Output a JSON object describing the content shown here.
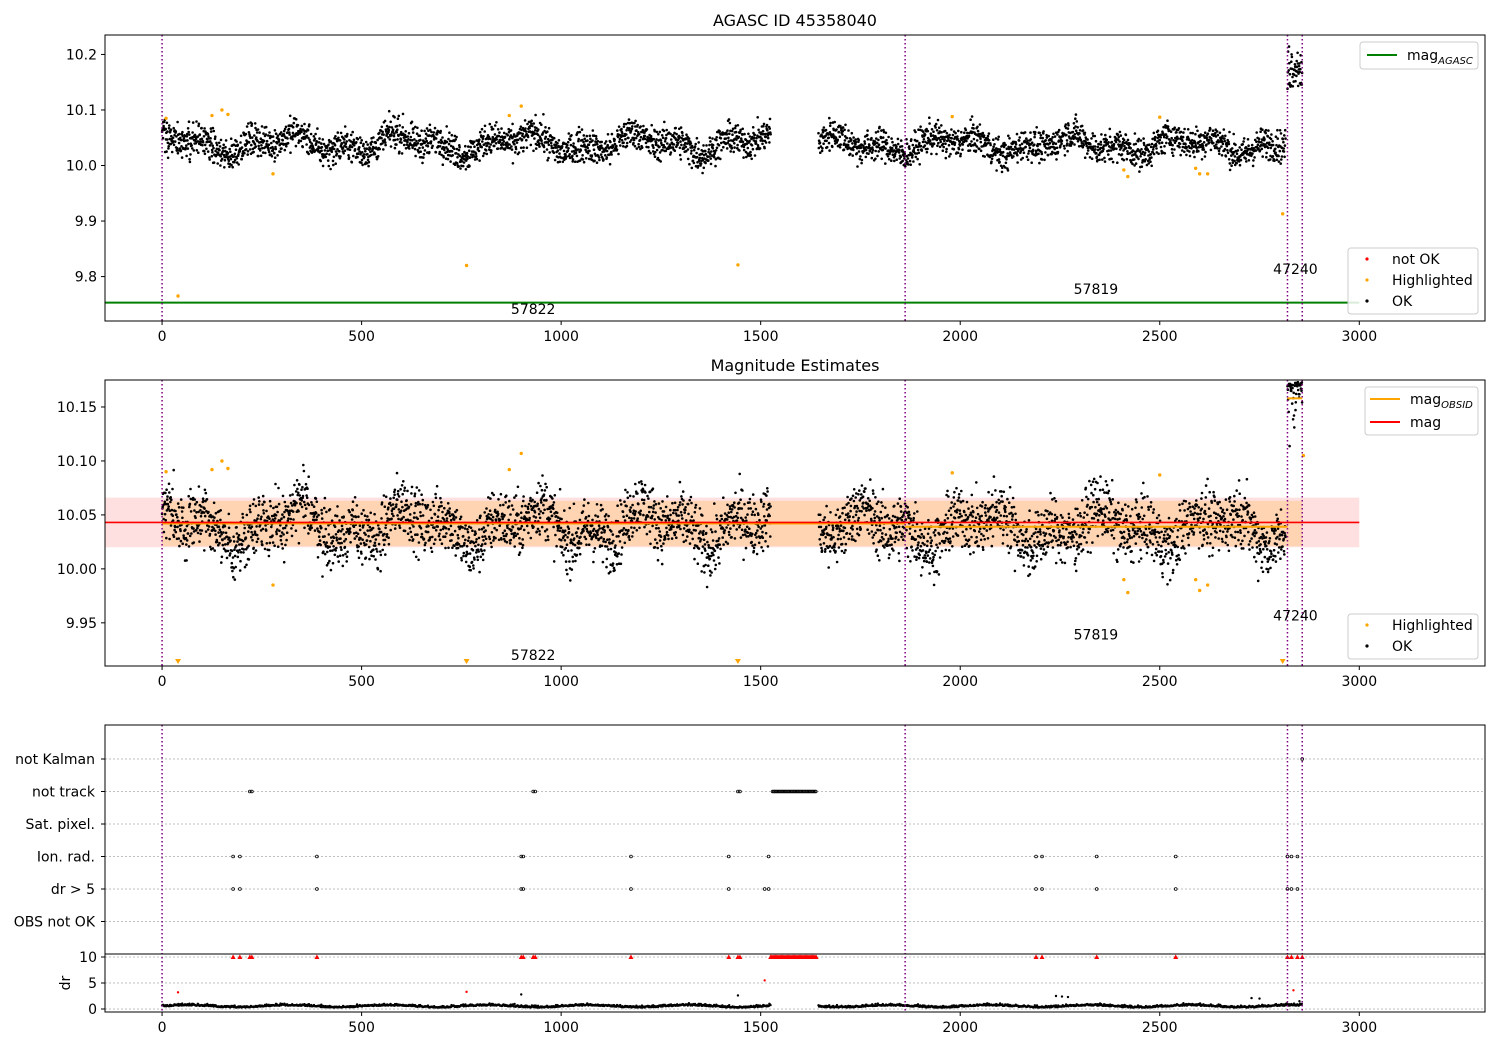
{
  "chart_data": [
    {
      "type": "scatter",
      "title": "AGASC ID 45358040",
      "xlabel": "",
      "ylabel": "",
      "xlim": [
        -143,
        3315
      ],
      "ylim": [
        9.72,
        10.235
      ],
      "x_ticks": [
        0,
        500,
        1000,
        1500,
        2000,
        2500,
        3000
      ],
      "y_ticks": [
        9.8,
        9.9,
        10.0,
        10.1,
        10.2
      ],
      "x_tick_labels": [
        "0",
        "500",
        "1000",
        "1500",
        "2000",
        "2500",
        "3000"
      ],
      "y_tick_labels": [
        "9.8",
        "9.9",
        "10.0",
        "10.1",
        "10.2"
      ],
      "grid": false,
      "legends": [
        {
          "placement": "top-right",
          "entries": [
            {
              "label": "mag",
              "subscript": "AGASC",
              "color": "#008000",
              "kind": "line"
            }
          ]
        },
        {
          "placement": "lower-right",
          "entries": [
            {
              "label": "not OK",
              "color": "#ff0000",
              "kind": "dot"
            },
            {
              "label": "Highlighted",
              "color": "#ffa500",
              "kind": "dot"
            },
            {
              "label": "OK",
              "color": "#000000",
              "kind": "dot"
            }
          ]
        }
      ],
      "obsid_boundaries": [
        0,
        1862,
        2820,
        2857
      ],
      "obsid_labels": [
        {
          "text": "57822",
          "x": 930,
          "y": 9.742
        },
        {
          "text": "57819",
          "x": 2340,
          "y": 9.778
        },
        {
          "text": "47240",
          "x": 2840,
          "y": 9.814
        }
      ],
      "reference_line": {
        "name": "mag_AGASC",
        "y": 9.753,
        "x_range": [
          -143,
          3000
        ],
        "color": "#008000"
      },
      "ok_segments": [
        {
          "x_range": [
            0,
            1525
          ],
          "center": 10.04,
          "amplitude": 0.022,
          "noise": 0.014
        },
        {
          "x_range": [
            1645,
            2815
          ],
          "center": 10.038,
          "amplitude": 0.02,
          "noise": 0.014
        },
        {
          "x_range": [
            2820,
            2857
          ],
          "center": 10.16,
          "amplitude": 0.02,
          "noise": 0.02
        }
      ],
      "highlighted_points": [
        {
          "x": 10,
          "y": 10.085
        },
        {
          "x": 40,
          "y": 9.765
        },
        {
          "x": 125,
          "y": 10.09
        },
        {
          "x": 150,
          "y": 10.1
        },
        {
          "x": 165,
          "y": 10.092
        },
        {
          "x": 278,
          "y": 9.985
        },
        {
          "x": 763,
          "y": 9.82
        },
        {
          "x": 870,
          "y": 10.09
        },
        {
          "x": 900,
          "y": 10.107
        },
        {
          "x": 1443,
          "y": 9.821
        },
        {
          "x": 1980,
          "y": 10.088
        },
        {
          "x": 2410,
          "y": 9.992
        },
        {
          "x": 2420,
          "y": 9.98
        },
        {
          "x": 2500,
          "y": 10.087
        },
        {
          "x": 2590,
          "y": 9.995
        },
        {
          "x": 2600,
          "y": 9.985
        },
        {
          "x": 2620,
          "y": 9.985
        },
        {
          "x": 2808,
          "y": 9.913
        }
      ]
    },
    {
      "type": "scatter",
      "title": "Magnitude Estimates",
      "xlabel": "",
      "ylabel": "",
      "xlim": [
        -143,
        3315
      ],
      "ylim": [
        9.91,
        10.175
      ],
      "x_ticks": [
        0,
        500,
        1000,
        1500,
        2000,
        2500,
        3000
      ],
      "y_ticks": [
        9.95,
        10.0,
        10.05,
        10.1,
        10.15
      ],
      "x_tick_labels": [
        "0",
        "500",
        "1000",
        "1500",
        "2000",
        "2500",
        "3000"
      ],
      "y_tick_labels": [
        "9.95",
        "10.00",
        "10.05",
        "10.10",
        "10.15"
      ],
      "grid": false,
      "legends": [
        {
          "placement": "top-right",
          "entries": [
            {
              "label": "mag",
              "subscript": "OBSID",
              "color": "#ffa500",
              "kind": "line"
            },
            {
              "label": "mag",
              "subscript": "",
              "color": "#ff0000",
              "kind": "line"
            }
          ]
        },
        {
          "placement": "lower-right",
          "entries": [
            {
              "label": "Highlighted",
              "color": "#ffa500",
              "kind": "dot"
            },
            {
              "label": "OK",
              "color": "#000000",
              "kind": "dot"
            }
          ]
        }
      ],
      "obsid_boundaries": [
        0,
        1862,
        2820,
        2857
      ],
      "obsid_labels": [
        {
          "text": "57822",
          "x": 930,
          "y": 9.92
        },
        {
          "text": "57819",
          "x": 2340,
          "y": 9.939
        },
        {
          "text": "47240",
          "x": 2840,
          "y": 9.957
        }
      ],
      "mag": {
        "y": 10.043,
        "band_inner": [
          10.021,
          10.063
        ],
        "band_outer": [
          10.02,
          10.066
        ],
        "x_range": [
          -143,
          3000
        ]
      },
      "mag_obsid": [
        {
          "x_range": [
            0,
            1862
          ],
          "y": 10.042
        },
        {
          "x_range": [
            1862,
            2820
          ],
          "y": 10.039
        },
        {
          "x_range": [
            2820,
            2857
          ],
          "y": 10.158
        }
      ],
      "ok_segments": [
        {
          "x_range": [
            0,
            1525
          ],
          "center": 10.04,
          "amplitude": 0.022,
          "noise": 0.014
        },
        {
          "x_range": [
            1645,
            2815
          ],
          "center": 10.038,
          "amplitude": 0.02,
          "noise": 0.014
        },
        {
          "x_range": [
            2820,
            2857
          ],
          "center": 10.16,
          "amplitude": 0.02,
          "noise": 0.02
        }
      ],
      "highlighted_points": [
        {
          "x": 10,
          "y": 10.09
        },
        {
          "x": 125,
          "y": 10.092
        },
        {
          "x": 150,
          "y": 10.1
        },
        {
          "x": 165,
          "y": 10.093
        },
        {
          "x": 278,
          "y": 9.985
        },
        {
          "x": 870,
          "y": 10.092
        },
        {
          "x": 900,
          "y": 10.107
        },
        {
          "x": 1980,
          "y": 10.089
        },
        {
          "x": 2410,
          "y": 9.99
        },
        {
          "x": 2420,
          "y": 9.978
        },
        {
          "x": 2500,
          "y": 10.087
        },
        {
          "x": 2590,
          "y": 9.99
        },
        {
          "x": 2600,
          "y": 9.98
        },
        {
          "x": 2620,
          "y": 9.985
        },
        {
          "x": 2860,
          "y": 10.105
        }
      ],
      "offscale_markers": [
        {
          "x": 40
        },
        {
          "x": 763
        },
        {
          "x": 1443
        },
        {
          "x": 2808
        }
      ]
    },
    {
      "type": "scatter",
      "title": "",
      "xlabel": "",
      "ylabel": "dr",
      "xlim": [
        -143,
        3315
      ],
      "x_ticks": [
        0,
        500,
        1000,
        1500,
        2000,
        2500,
        3000
      ],
      "x_tick_labels": [
        "0",
        "500",
        "1000",
        "1500",
        "2000",
        "2500",
        "3000"
      ],
      "flag_rows": [
        "not Kalman",
        "not track",
        "Sat. pixel.",
        "Ion. rad.",
        "dr > 5",
        "OBS not OK"
      ],
      "dr_ylim": [
        -0.5,
        10.5
      ],
      "dr_ticks": [
        0,
        5,
        10
      ],
      "dr_tick_labels": [
        "0",
        "5",
        "10"
      ],
      "obsid_boundaries": [
        0,
        1862,
        2820,
        2857
      ],
      "flags": {
        "not Kalman": [
          2857
        ],
        "not track": [
          220,
          225,
          930,
          935,
          1443,
          1448,
          {
            "range": [
              1530,
              1640
            ]
          }
        ],
        "Sat. pixel.": [],
        "Ion. rad.": [
          178,
          195,
          388,
          900,
          905,
          1175,
          1420,
          1520,
          2190,
          2205,
          2342,
          2540,
          2820,
          2830,
          2845
        ],
        "dr > 5": [
          178,
          195,
          388,
          900,
          905,
          1175,
          1420,
          1510,
          1520,
          2190,
          2205,
          2342,
          2540,
          2820,
          2830,
          2845
        ],
        "OBS not OK": []
      },
      "dr_capped_points": [
        178,
        195,
        220,
        225,
        388,
        900,
        905,
        930,
        935,
        1175,
        1420,
        1443,
        1448,
        {
          "range": [
            1525,
            1640
          ]
        },
        2190,
        2205,
        2342,
        2540,
        2820,
        2830,
        2845,
        2857
      ],
      "dr_outliers": [
        {
          "x": 40,
          "y": 3.2
        },
        {
          "x": 763,
          "y": 3.3
        },
        {
          "x": 900,
          "y": 2.8
        },
        {
          "x": 1443,
          "y": 2.6
        },
        {
          "x": 1510,
          "y": 5.5
        },
        {
          "x": 2240,
          "y": 2.5
        },
        {
          "x": 2255,
          "y": 2.4
        },
        {
          "x": 2270,
          "y": 2.3
        },
        {
          "x": 2730,
          "y": 2.1
        },
        {
          "x": 2750,
          "y": 2.0
        },
        {
          "x": 2835,
          "y": 3.6
        },
        {
          "x": 2850,
          "y": 1.5
        }
      ],
      "dr_base": {
        "segments": [
          [
            0,
            1525
          ],
          [
            1645,
            2857
          ]
        ],
        "level": 0.45,
        "noise": 0.35
      }
    }
  ]
}
